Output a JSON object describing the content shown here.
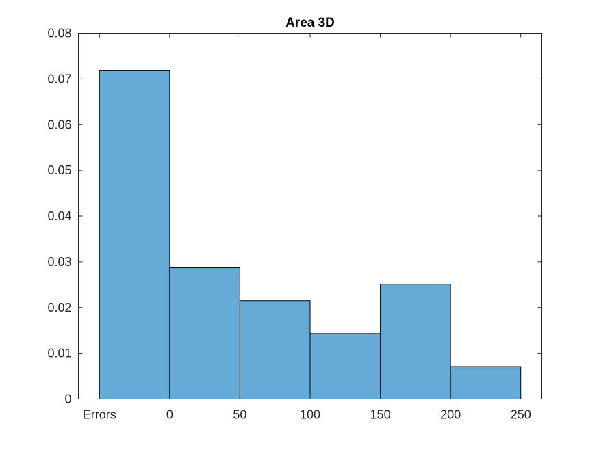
{
  "chart_data": {
    "type": "bar",
    "title": "Area 3D",
    "xlabel": "",
    "ylabel": "",
    "categories": [
      "Errors",
      "0-50",
      "50-100",
      "100-150",
      "150-200",
      "200-250"
    ],
    "bin_edges": [
      -50,
      0,
      50,
      100,
      150,
      200,
      250
    ],
    "values": [
      0.0718,
      0.0287,
      0.0215,
      0.0143,
      0.0251,
      0.0071
    ],
    "xlim": [
      -65,
      265
    ],
    "ylim": [
      0,
      0.08
    ],
    "x_ticks": [
      {
        "value": -50,
        "label": "Errors"
      },
      {
        "value": 0,
        "label": "0"
      },
      {
        "value": 50,
        "label": "50"
      },
      {
        "value": 100,
        "label": "100"
      },
      {
        "value": 150,
        "label": "150"
      },
      {
        "value": 200,
        "label": "200"
      },
      {
        "value": 250,
        "label": "250"
      }
    ],
    "y_ticks": [
      {
        "value": 0,
        "label": "0"
      },
      {
        "value": 0.01,
        "label": "0.01"
      },
      {
        "value": 0.02,
        "label": "0.02"
      },
      {
        "value": 0.03,
        "label": "0.03"
      },
      {
        "value": 0.04,
        "label": "0.04"
      },
      {
        "value": 0.05,
        "label": "0.05"
      },
      {
        "value": 0.06,
        "label": "0.06"
      },
      {
        "value": 0.07,
        "label": "0.07"
      },
      {
        "value": 0.08,
        "label": "0.08"
      }
    ],
    "grid": false,
    "bar_color": "#66aad7",
    "edge_color": "#000000"
  }
}
